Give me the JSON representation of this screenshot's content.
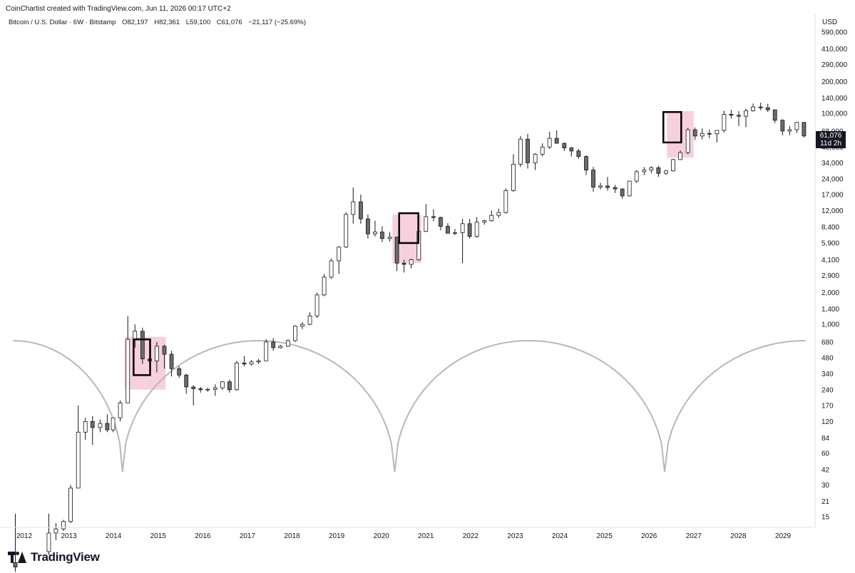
{
  "header": {
    "credit": "CoinChartist created with TradingView.com, Jun 11, 2026 00:17 UTC+2"
  },
  "symbol": {
    "name": "Bitcoin / U.S. Dollar · 6W · Bitstamp",
    "open_label": "O",
    "open": "82,197",
    "high_label": "H",
    "high": "82,361",
    "low_label": "L",
    "low": "59,100",
    "close_label": "C",
    "close": "61,076",
    "change": "−21,117 (−25.69%)"
  },
  "currency": "USD",
  "last_price": {
    "value": "61,076",
    "countdown": "11d 2h"
  },
  "brand": {
    "name": "TradingView",
    "color": "#131722"
  },
  "chart_data": {
    "type": "candlestick",
    "yscale": "log",
    "ylim": [
      11,
      590000
    ],
    "xlim": [
      2011.8,
      2029.7
    ],
    "y_ticks": [
      590000,
      410000,
      290000,
      200000,
      140000,
      100000,
      68000,
      48000,
      34000,
      24000,
      17000,
      12000,
      8400,
      5900,
      4100,
      2900,
      2000,
      1400,
      1000,
      680,
      480,
      340,
      240,
      170,
      120,
      84,
      60,
      42,
      30,
      21,
      15
    ],
    "y_tick_labels": [
      "590,000",
      "410,000",
      "290,000",
      "200,000",
      "140,000",
      "100,000",
      "68,000",
      "48,000",
      "34,000",
      "24,000",
      "17,000",
      "12,000",
      "8,400",
      "5,900",
      "4,100",
      "2,900",
      "2,000",
      "1,400",
      "1,000",
      "680",
      "480",
      "340",
      "240",
      "170",
      "120",
      "84",
      "60",
      "42",
      "30",
      "21",
      "15"
    ],
    "x_ticks": [
      2012,
      2013,
      2014,
      2015,
      2016,
      2017,
      2018,
      2019,
      2020,
      2021,
      2022,
      2023,
      2024,
      2025,
      2026,
      2027,
      2028,
      2029
    ],
    "x_tick_labels": [
      "2012",
      "2013",
      "2014",
      "2015",
      "2016",
      "2017",
      "2018",
      "2019",
      "2020",
      "2021",
      "2022",
      "2023",
      "2024",
      "2025",
      "2026",
      "2027",
      "2028",
      "2029"
    ],
    "colors": {
      "up": "#ffffff",
      "down": "#6b6b6b",
      "outline": "#131722",
      "highlight": "#f8d0dd",
      "cycle": "#b8b8b8"
    },
    "candles": [
      {
        "t": 2011.8,
        "o": 5.5,
        "h": 16,
        "l": 4.5,
        "c": 5.0
      },
      {
        "t": 2012.55,
        "o": 7.0,
        "h": 16,
        "l": 6.5,
        "c": 10.5
      },
      {
        "t": 2012.71,
        "o": 10.5,
        "h": 13,
        "l": 9,
        "c": 11.5
      },
      {
        "t": 2012.88,
        "o": 11.5,
        "h": 14,
        "l": 11,
        "c": 13.5
      },
      {
        "t": 2013.04,
        "o": 13.5,
        "h": 30,
        "l": 13,
        "c": 28
      },
      {
        "t": 2013.21,
        "o": 28,
        "h": 170,
        "l": 28,
        "c": 95
      },
      {
        "t": 2013.37,
        "o": 95,
        "h": 130,
        "l": 80,
        "c": 120
      },
      {
        "t": 2013.53,
        "o": 120,
        "h": 135,
        "l": 72,
        "c": 105
      },
      {
        "t": 2013.7,
        "o": 105,
        "h": 125,
        "l": 95,
        "c": 115
      },
      {
        "t": 2013.86,
        "o": 115,
        "h": 140,
        "l": 95,
        "c": 100
      },
      {
        "t": 2013.99,
        "o": 100,
        "h": 130,
        "l": 95,
        "c": 130
      },
      {
        "t": 2014.15,
        "o": 130,
        "h": 190,
        "l": 120,
        "c": 180
      },
      {
        "t": 2014.32,
        "o": 180,
        "h": 1200,
        "l": 180,
        "c": 720
      },
      {
        "t": 2014.48,
        "o": 720,
        "h": 1000,
        "l": 600,
        "c": 860
      },
      {
        "t": 2014.65,
        "o": 860,
        "h": 930,
        "l": 420,
        "c": 470
      },
      {
        "t": 2014.81,
        "o": 470,
        "h": 700,
        "l": 420,
        "c": 450
      },
      {
        "t": 2014.97,
        "o": 450,
        "h": 680,
        "l": 350,
        "c": 620
      },
      {
        "t": 2015.14,
        "o": 620,
        "h": 640,
        "l": 380,
        "c": 520
      },
      {
        "t": 2015.3,
        "o": 520,
        "h": 560,
        "l": 320,
        "c": 380
      },
      {
        "t": 2015.47,
        "o": 380,
        "h": 400,
        "l": 310,
        "c": 330
      },
      {
        "t": 2015.63,
        "o": 330,
        "h": 340,
        "l": 220,
        "c": 255
      },
      {
        "t": 2015.79,
        "o": 255,
        "h": 265,
        "l": 170,
        "c": 245
      },
      {
        "t": 2015.95,
        "o": 245,
        "h": 255,
        "l": 225,
        "c": 240
      },
      {
        "t": 2016.11,
        "o": 240,
        "h": 250,
        "l": 230,
        "c": 242
      },
      {
        "t": 2016.28,
        "o": 242,
        "h": 270,
        "l": 210,
        "c": 250
      },
      {
        "t": 2016.44,
        "o": 250,
        "h": 290,
        "l": 240,
        "c": 285
      },
      {
        "t": 2016.6,
        "o": 285,
        "h": 300,
        "l": 225,
        "c": 240
      },
      {
        "t": 2016.76,
        "o": 240,
        "h": 450,
        "l": 235,
        "c": 430
      },
      {
        "t": 2016.93,
        "o": 430,
        "h": 500,
        "l": 400,
        "c": 420
      },
      {
        "t": 2017.09,
        "o": 420,
        "h": 460,
        "l": 405,
        "c": 440
      },
      {
        "t": 2017.25,
        "o": 440,
        "h": 470,
        "l": 420,
        "c": 450
      },
      {
        "t": 2017.42,
        "o": 450,
        "h": 720,
        "l": 450,
        "c": 680
      },
      {
        "t": 2017.58,
        "o": 680,
        "h": 740,
        "l": 560,
        "c": 600
      },
      {
        "t": 2017.74,
        "o": 600,
        "h": 640,
        "l": 590,
        "c": 620
      },
      {
        "t": 2017.91,
        "o": 620,
        "h": 720,
        "l": 610,
        "c": 700
      },
      {
        "t": 2018.07,
        "o": 700,
        "h": 980,
        "l": 680,
        "c": 960
      },
      {
        "t": 2018.23,
        "o": 960,
        "h": 1050,
        "l": 900,
        "c": 1000
      },
      {
        "t": 2018.4,
        "o": 1000,
        "h": 1300,
        "l": 980,
        "c": 1200
      },
      {
        "t": 2018.56,
        "o": 1200,
        "h": 2000,
        "l": 1150,
        "c": 1900
      },
      {
        "t": 2018.72,
        "o": 1900,
        "h": 3000,
        "l": 1850,
        "c": 2800
      },
      {
        "t": 2018.88,
        "o": 2800,
        "h": 4200,
        "l": 2700,
        "c": 4000
      },
      {
        "t": 2019.05,
        "o": 4000,
        "h": 5500,
        "l": 3000,
        "c": 5400
      },
      {
        "t": 2019.21,
        "o": 5400,
        "h": 11500,
        "l": 5300,
        "c": 11000
      },
      {
        "t": 2019.37,
        "o": 11000,
        "h": 19800,
        "l": 9000,
        "c": 14500
      },
      {
        "t": 2019.54,
        "o": 14500,
        "h": 17000,
        "l": 9000,
        "c": 10000
      },
      {
        "t": 2019.7,
        "o": 10000,
        "h": 11000,
        "l": 6500,
        "c": 7200
      },
      {
        "t": 2019.86,
        "o": 7200,
        "h": 9600,
        "l": 6800,
        "c": 7500
      },
      {
        "t": 2020.02,
        "o": 7500,
        "h": 8500,
        "l": 6000,
        "c": 6500
      },
      {
        "t": 2020.19,
        "o": 6500,
        "h": 7500,
        "l": 6100,
        "c": 6700
      },
      {
        "t": 2020.35,
        "o": 6700,
        "h": 6800,
        "l": 3200,
        "c": 3800
      },
      {
        "t": 2020.51,
        "o": 3800,
        "h": 4100,
        "l": 3100,
        "c": 3700
      },
      {
        "t": 2020.67,
        "o": 3700,
        "h": 4200,
        "l": 3400,
        "c": 4100
      },
      {
        "t": 2020.84,
        "o": 4100,
        "h": 7800,
        "l": 4000,
        "c": 7600
      },
      {
        "t": 2021.0,
        "o": 7600,
        "h": 13800,
        "l": 7500,
        "c": 10500
      },
      {
        "t": 2021.17,
        "o": 10500,
        "h": 12300,
        "l": 9500,
        "c": 10300
      },
      {
        "t": 2021.33,
        "o": 10300,
        "h": 10500,
        "l": 7800,
        "c": 8500
      },
      {
        "t": 2021.49,
        "o": 8500,
        "h": 9100,
        "l": 7300,
        "c": 7300
      },
      {
        "t": 2021.65,
        "o": 7300,
        "h": 8000,
        "l": 7000,
        "c": 7400
      },
      {
        "t": 2021.82,
        "o": 7400,
        "h": 10000,
        "l": 3800,
        "c": 9000
      },
      {
        "t": 2021.98,
        "o": 9000,
        "h": 10000,
        "l": 6500,
        "c": 6800
      },
      {
        "t": 2022.14,
        "o": 6800,
        "h": 10400,
        "l": 6600,
        "c": 9300
      },
      {
        "t": 2022.31,
        "o": 9300,
        "h": 9800,
        "l": 8800,
        "c": 9600
      },
      {
        "t": 2022.47,
        "o": 9600,
        "h": 12000,
        "l": 9400,
        "c": 10800
      },
      {
        "t": 2022.63,
        "o": 10800,
        "h": 12500,
        "l": 10200,
        "c": 11500
      },
      {
        "t": 2022.79,
        "o": 11500,
        "h": 19500,
        "l": 11200,
        "c": 18500
      },
      {
        "t": 2022.96,
        "o": 18500,
        "h": 41000,
        "l": 18000,
        "c": 33000
      },
      {
        "t": 2023.12,
        "o": 33000,
        "h": 61000,
        "l": 31000,
        "c": 57000
      },
      {
        "t": 2023.28,
        "o": 57000,
        "h": 64000,
        "l": 30000,
        "c": 34000
      },
      {
        "t": 2023.45,
        "o": 34000,
        "h": 42000,
        "l": 29000,
        "c": 41000
      },
      {
        "t": 2023.61,
        "o": 41000,
        "h": 52000,
        "l": 39000,
        "c": 48000
      },
      {
        "t": 2023.77,
        "o": 48000,
        "h": 67000,
        "l": 46000,
        "c": 58000
      },
      {
        "t": 2023.93,
        "o": 58000,
        "h": 69000,
        "l": 53000,
        "c": 52000
      },
      {
        "t": 2024.1,
        "o": 52000,
        "h": 53000,
        "l": 44000,
        "c": 47000
      },
      {
        "t": 2024.26,
        "o": 47000,
        "h": 48000,
        "l": 39000,
        "c": 44000
      },
      {
        "t": 2024.42,
        "o": 44000,
        "h": 46000,
        "l": 37000,
        "c": 39000
      },
      {
        "t": 2024.59,
        "o": 39000,
        "h": 40000,
        "l": 26000,
        "c": 29000
      },
      {
        "t": 2024.75,
        "o": 29000,
        "h": 31000,
        "l": 18000,
        "c": 20000
      },
      {
        "t": 2024.91,
        "o": 20000,
        "h": 22000,
        "l": 19000,
        "c": 20500
      },
      {
        "t": 2025.07,
        "o": 20500,
        "h": 25000,
        "l": 18500,
        "c": 19800
      },
      {
        "t": 2025.24,
        "o": 19800,
        "h": 21000,
        "l": 17600,
        "c": 19200
      },
      {
        "t": 2025.4,
        "o": 19200,
        "h": 19500,
        "l": 15500,
        "c": 16500
      },
      {
        "t": 2025.56,
        "o": 16500,
        "h": 23000,
        "l": 16300,
        "c": 22800
      },
      {
        "t": 2025.72,
        "o": 22800,
        "h": 29000,
        "l": 22000,
        "c": 28000
      },
      {
        "t": 2025.89,
        "o": 28000,
        "h": 31000,
        "l": 26000,
        "c": 29000
      },
      {
        "t": 2026.05,
        "o": 29000,
        "h": 31500,
        "l": 27000,
        "c": 30500
      },
      {
        "t": 2026.21,
        "o": 30500,
        "h": 31800,
        "l": 25000,
        "c": 27000
      },
      {
        "t": 2026.38,
        "o": 27000,
        "h": 29000,
        "l": 26000,
        "c": 28500
      },
      {
        "t": 2026.54,
        "o": 28500,
        "h": 37000,
        "l": 28000,
        "c": 36500
      },
      {
        "t": 2026.7,
        "o": 36500,
        "h": 44500,
        "l": 36000,
        "c": 42500
      },
      {
        "t": 2026.87,
        "o": 42500,
        "h": 73000,
        "l": 41000,
        "c": 70000
      },
      {
        "t": 2027.03,
        "o": 70000,
        "h": 73500,
        "l": 56000,
        "c": 61000
      },
      {
        "t": 2027.19,
        "o": 61000,
        "h": 72000,
        "l": 56500,
        "c": 64500
      },
      {
        "t": 2027.35,
        "o": 64500,
        "h": 70000,
        "l": 58000,
        "c": 64000
      },
      {
        "t": 2027.52,
        "o": 64000,
        "h": 69000,
        "l": 53000,
        "c": 69000
      },
      {
        "t": 2027.68,
        "o": 69000,
        "h": 106000,
        "l": 66000,
        "c": 98000
      },
      {
        "t": 2027.84,
        "o": 98000,
        "h": 108000,
        "l": 89000,
        "c": 96000
      },
      {
        "t": 2028.01,
        "o": 96000,
        "h": 105000,
        "l": 76000,
        "c": 94000
      },
      {
        "t": 2028.17,
        "o": 94000,
        "h": 111000,
        "l": 74000,
        "c": 106000
      },
      {
        "t": 2028.33,
        "o": 106000,
        "h": 124000,
        "l": 104000,
        "c": 115000
      },
      {
        "t": 2028.5,
        "o": 115000,
        "h": 126000,
        "l": 107000,
        "c": 113000
      },
      {
        "t": 2028.66,
        "o": 113000,
        "h": 123000,
        "l": 103000,
        "c": 108000
      },
      {
        "t": 2028.82,
        "o": 108000,
        "h": 109000,
        "l": 81000,
        "c": 86000
      },
      {
        "t": 2028.99,
        "o": 86000,
        "h": 88000,
        "l": 62000,
        "c": 68000
      },
      {
        "t": 2029.15,
        "o": 68000,
        "h": 76000,
        "l": 62000,
        "c": 70000
      },
      {
        "t": 2029.31,
        "o": 70000,
        "h": 82000,
        "l": 65000,
        "c": 82197
      },
      {
        "t": 2029.47,
        "o": 82197,
        "h": 82361,
        "l": 59100,
        "c": 61076
      }
    ]
  }
}
